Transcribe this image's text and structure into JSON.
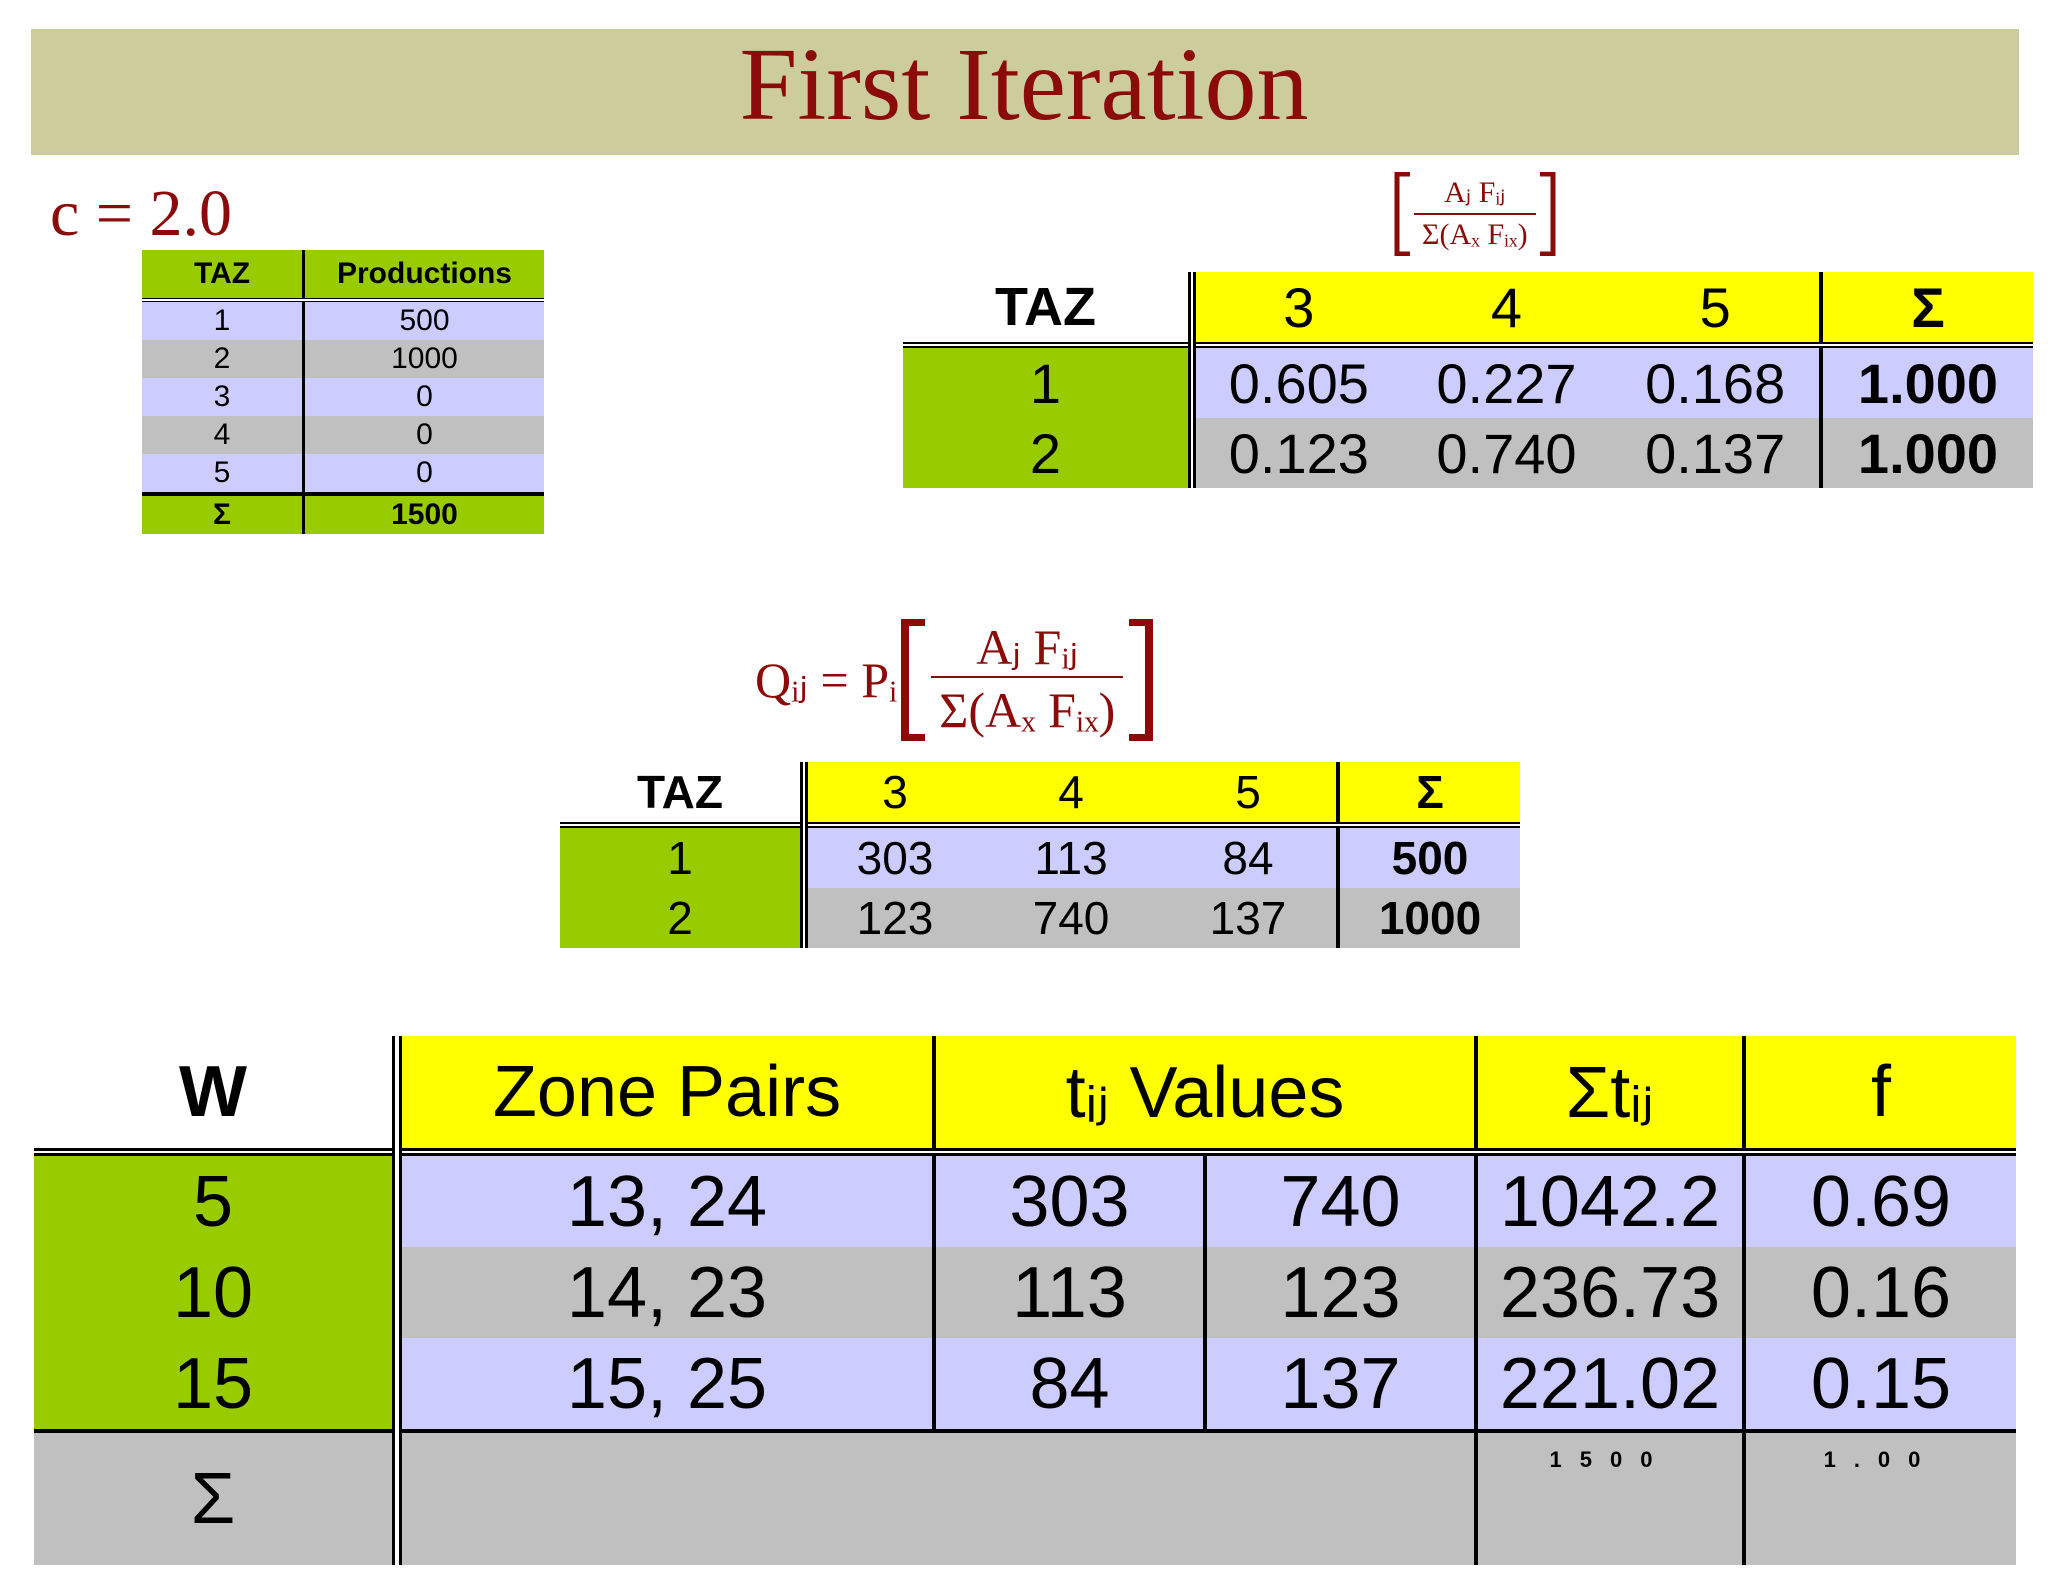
{
  "title": "First Iteration",
  "c_label": "c = 2.0",
  "productions": {
    "headers": [
      "TAZ",
      "Productions"
    ],
    "rows": [
      [
        "1",
        "500"
      ],
      [
        "2",
        "1000"
      ],
      [
        "3",
        "0"
      ],
      [
        "4",
        "0"
      ],
      [
        "5",
        "0"
      ]
    ],
    "sum": [
      "Σ",
      "1500"
    ]
  },
  "formula1": {
    "numerator": "Aⱼ Fᵢⱼ",
    "denominator": "Σ(Aₓ Fᵢₓ)"
  },
  "formula2": {
    "lhs": "Qᵢⱼ = Pᵢ",
    "numerator": "Aⱼ Fᵢⱼ",
    "denominator": "Σ(Aₓ Fᵢₓ)"
  },
  "fraction_table": {
    "header": [
      "TAZ",
      "3",
      "4",
      "5",
      "Σ"
    ],
    "rows": [
      [
        "1",
        "0.605",
        "0.227",
        "0.168",
        "1.000"
      ],
      [
        "2",
        "0.123",
        "0.740",
        "0.137",
        "1.000"
      ]
    ]
  },
  "quantity_table": {
    "header": [
      "TAZ",
      "3",
      "4",
      "5",
      "Σ"
    ],
    "rows": [
      [
        "1",
        "303",
        "113",
        "84",
        "500"
      ],
      [
        "2",
        "123",
        "740",
        "137",
        "1000"
      ]
    ]
  },
  "bottom_table": {
    "header": {
      "w": "W",
      "zone_pairs": "Zone Pairs",
      "tij_values": "tᵢⱼ Values",
      "sum_tij": "Σtᵢⱼ",
      "f": "f"
    },
    "rows": [
      {
        "w": "5",
        "pairs": "13, 24",
        "t1": "303",
        "t2": "740",
        "sum": "1042.2",
        "f": "0.69"
      },
      {
        "w": "10",
        "pairs": "14, 23",
        "t1": "113",
        "t2": "123",
        "sum": "236.73",
        "f": "0.16"
      },
      {
        "w": "15",
        "pairs": "15, 25",
        "t1": "84",
        "t2": "137",
        "sum": "221.02",
        "f": "0.15"
      }
    ],
    "sum_row": {
      "w": "Σ",
      "sum": "1500",
      "f": "1.00"
    }
  },
  "colors": {
    "banner": "#cccc9c",
    "title": "#8b0a0a",
    "green": "#99cc00",
    "yellow": "#ffff00",
    "lavender": "#ccccff",
    "gray": "#c0c0c0"
  }
}
